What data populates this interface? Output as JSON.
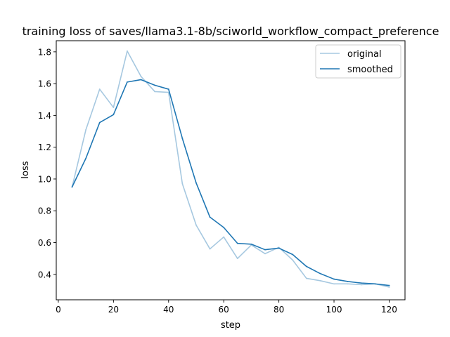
{
  "chart_data": {
    "type": "line",
    "title": "training loss of saves/llama3.1-8b/sciworld_workflow_compact_preference",
    "xlabel": "step",
    "ylabel": "loss",
    "xlim": [
      -0.75,
      125.75
    ],
    "ylim": [
      0.24,
      1.87
    ],
    "xticks": [
      0,
      20,
      40,
      60,
      80,
      100,
      120
    ],
    "yticks": [
      0.4,
      0.6,
      0.8,
      1.0,
      1.2,
      1.4,
      1.6,
      1.8
    ],
    "grid": false,
    "legend_position": "top-right",
    "x": [
      5,
      10,
      15,
      20,
      25,
      30,
      35,
      40,
      45,
      50,
      55,
      60,
      65,
      70,
      75,
      80,
      85,
      90,
      95,
      100,
      105,
      110,
      115,
      120
    ],
    "series": [
      {
        "name": "original",
        "color": "#a6c8e0",
        "values": [
          0.95,
          1.31,
          1.565,
          1.45,
          1.805,
          1.645,
          1.55,
          1.545,
          0.97,
          0.71,
          0.56,
          0.635,
          0.5,
          0.585,
          0.53,
          0.57,
          0.49,
          0.375,
          0.36,
          0.34,
          0.34,
          0.335,
          0.34,
          0.32
        ]
      },
      {
        "name": "smoothed",
        "color": "#1f77b4",
        "values": [
          0.95,
          1.13,
          1.355,
          1.405,
          1.61,
          1.625,
          1.59,
          1.565,
          1.255,
          0.975,
          0.76,
          0.695,
          0.595,
          0.59,
          0.555,
          0.565,
          0.525,
          0.45,
          0.405,
          0.37,
          0.355,
          0.345,
          0.34,
          0.33
        ]
      }
    ]
  }
}
